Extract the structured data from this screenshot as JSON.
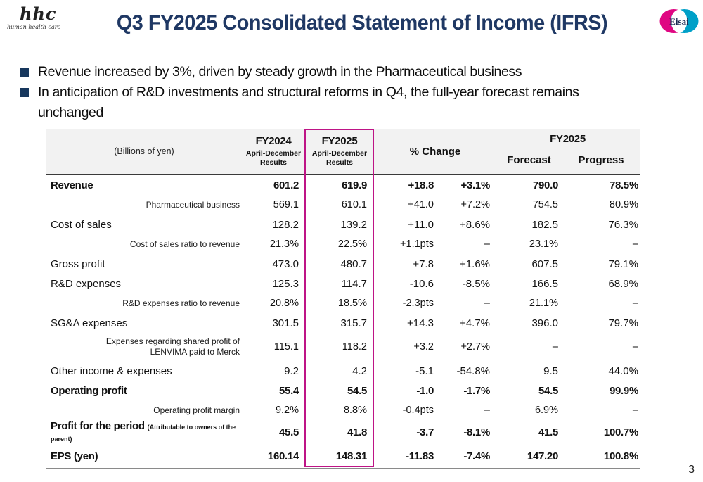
{
  "page": {
    "number": "3"
  },
  "branding": {
    "hhc_script": "hhc",
    "hhc_tagline": "human health care",
    "eisai_text": "Eisai",
    "eisai_magenta": "#DF0782",
    "eisai_cyan": "#00A0C8"
  },
  "title": "Q3 FY2025 Consolidated Statement of Income (IFRS)",
  "bullets": [
    "Revenue increased by 3%, driven by steady growth in the Pharmaceutical business",
    "In anticipation of R&D investments and structural reforms in Q4, the full-year forecast remains unchanged"
  ],
  "table": {
    "unit_label": "(Billions of yen)",
    "highlight_color": "#BE1486",
    "header": {
      "fy2024_title": "FY2024",
      "fy2024_sub": "April-December Results",
      "fy2025_title": "FY2025",
      "fy2025_sub": "April-December Results",
      "change_title": "% Change",
      "fy2025_full_title": "FY2025",
      "forecast_label": "Forecast",
      "progress_label": "Progress"
    },
    "rows": [
      {
        "label": "Revenue",
        "style": "bold",
        "values": [
          "601.2",
          "619.9",
          "+18.8",
          "+3.1%",
          "790.0",
          "78.5%"
        ]
      },
      {
        "label": "Pharmaceutical business",
        "style": "sub",
        "values": [
          "569.1",
          "610.1",
          "+41.0",
          "+7.2%",
          "754.5",
          "80.9%"
        ]
      },
      {
        "label": "Cost of sales",
        "style": "normal",
        "values": [
          "128.2",
          "139.2",
          "+11.0",
          "+8.6%",
          "182.5",
          "76.3%"
        ]
      },
      {
        "label": "Cost of sales ratio to revenue",
        "style": "sub",
        "values": [
          "21.3%",
          "22.5%",
          "+1.1pts",
          "–",
          "23.1%",
          "–"
        ]
      },
      {
        "label": "Gross profit",
        "style": "normal",
        "values": [
          "473.0",
          "480.7",
          "+7.8",
          "+1.6%",
          "607.5",
          "79.1%"
        ]
      },
      {
        "label": "R&D expenses",
        "style": "normal",
        "values": [
          "125.3",
          "114.7",
          "-10.6",
          "-8.5%",
          "166.5",
          "68.9%"
        ]
      },
      {
        "label": "R&D expenses ratio to revenue",
        "style": "sub",
        "values": [
          "20.8%",
          "18.5%",
          "-2.3pts",
          "–",
          "21.1%",
          "–"
        ]
      },
      {
        "label": "SG&A expenses",
        "style": "normal",
        "values": [
          "301.5",
          "315.7",
          "+14.3",
          "+4.7%",
          "396.0",
          "79.7%"
        ]
      },
      {
        "label": "Expenses regarding shared profit of LENVIMA paid to Merck",
        "style": "sub",
        "values": [
          "115.1",
          "118.2",
          "+3.2",
          "+2.7%",
          "–",
          "–"
        ]
      },
      {
        "label": "Other income & expenses",
        "style": "normal",
        "values": [
          "9.2",
          "4.2",
          "-5.1",
          "-54.8%",
          "9.5",
          "44.0%"
        ]
      },
      {
        "label": "Operating profit",
        "style": "bold",
        "values": [
          "55.4",
          "54.5",
          "-1.0",
          "-1.7%",
          "54.5",
          "99.9%"
        ]
      },
      {
        "label": "Operating profit margin",
        "style": "sub",
        "values": [
          "9.2%",
          "8.8%",
          "-0.4pts",
          "–",
          "6.9%",
          "–"
        ]
      },
      {
        "label": "Profit for the period",
        "suffix": "(Attributable to owners of the parent)",
        "style": "bold",
        "values": [
          "45.5",
          "41.8",
          "-3.7",
          "-8.1%",
          "41.5",
          "100.7%"
        ]
      },
      {
        "label": "EPS (yen)",
        "style": "bold",
        "values": [
          "160.14",
          "148.31",
          "-11.83",
          "-7.4%",
          "147.20",
          "100.8%"
        ]
      }
    ]
  }
}
